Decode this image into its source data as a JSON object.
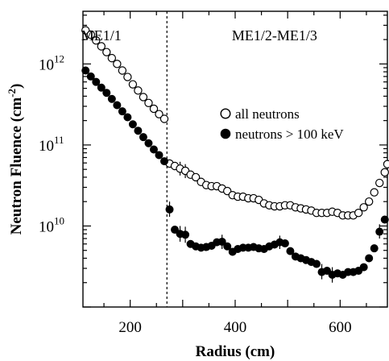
{
  "chart_data": {
    "type": "scatter",
    "xlabel": "Radius (cm)",
    "ylabel_main": "Neutron Fluence (cm",
    "ylabel_sup": "-2",
    "ylabel_close": ")",
    "xlim": [
      110,
      690
    ],
    "ylim_log10": [
      9.0,
      12.65
    ],
    "y_scale": "log",
    "x_ticks": [
      {
        "value": 200,
        "label": "200"
      },
      {
        "value": 400,
        "label": "400"
      },
      {
        "value": 600,
        "label": "600"
      }
    ],
    "y_ticks": [
      {
        "exp": 10,
        "base": "10",
        "sup": "10"
      },
      {
        "exp": 11,
        "base": "10",
        "sup": "11"
      },
      {
        "exp": 12,
        "base": "10",
        "sup": "12"
      }
    ],
    "divider_x": 270,
    "regions": [
      {
        "label": "ME1/1",
        "x": 145
      },
      {
        "label": "ME1/2-ME1/3",
        "x": 475
      }
    ],
    "legend": {
      "placement": "right-middle",
      "entries": [
        {
          "label": "all neutrons",
          "marker": "open-circle"
        },
        {
          "label": "neutrons > 100 keV",
          "marker": "filled-circle"
        }
      ]
    },
    "series": [
      {
        "name": "all neutrons",
        "marker": "open-circle",
        "points": [
          [
            115,
            2600000000000.0
          ],
          [
            125,
            2300000000000.0
          ],
          [
            135,
            1950000000000.0
          ],
          [
            145,
            1650000000000.0
          ],
          [
            155,
            1400000000000.0
          ],
          [
            165,
            1180000000000.0
          ],
          [
            175,
            1000000000000.0
          ],
          [
            185,
            830000000000.0
          ],
          [
            195,
            690000000000.0
          ],
          [
            205,
            560000000000.0
          ],
          [
            215,
            470000000000.0
          ],
          [
            225,
            390000000000.0
          ],
          [
            235,
            330000000000.0
          ],
          [
            245,
            280000000000.0
          ],
          [
            255,
            240000000000.0
          ],
          [
            265,
            210000000000.0
          ],
          [
            275,
            59000000000.0
          ],
          [
            285,
            55000000000.0
          ],
          [
            295,
            51000000000.0
          ],
          [
            305,
            48000000000.0
          ],
          [
            315,
            43000000000.0
          ],
          [
            325,
            40000000000.0
          ],
          [
            335,
            35000000000.0
          ],
          [
            345,
            32000000000.0
          ],
          [
            355,
            31000000000.0
          ],
          [
            365,
            31000000000.0
          ],
          [
            375,
            29000000000.0
          ],
          [
            385,
            27000000000.0
          ],
          [
            395,
            24000000000.0
          ],
          [
            405,
            23000000000.0
          ],
          [
            415,
            23000000000.0
          ],
          [
            425,
            22000000000.0
          ],
          [
            435,
            22000000000.0
          ],
          [
            445,
            21000000000.0
          ],
          [
            455,
            19000000000.0
          ],
          [
            465,
            18000000000.0
          ],
          [
            475,
            17500000000.0
          ],
          [
            485,
            17500000000.0
          ],
          [
            495,
            18000000000.0
          ],
          [
            505,
            18000000000.0
          ],
          [
            515,
            17000000000.0
          ],
          [
            525,
            16500000000.0
          ],
          [
            535,
            16000000000.0
          ],
          [
            545,
            15500000000.0
          ],
          [
            555,
            14500000000.0
          ],
          [
            565,
            14500000000.0
          ],
          [
            575,
            14500000000.0
          ],
          [
            585,
            15000000000.0
          ],
          [
            595,
            14500000000.0
          ],
          [
            605,
            13500000000.0
          ],
          [
            615,
            13500000000.0
          ],
          [
            625,
            13500000000.0
          ],
          [
            635,
            14500000000.0
          ],
          [
            645,
            17000000000.0
          ],
          [
            655,
            20000000000.0
          ],
          [
            665,
            26000000000.0
          ],
          [
            675,
            34000000000.0
          ],
          [
            685,
            46000000000.0
          ],
          [
            690,
            58000000000.0
          ]
        ],
        "error_bars": [
          {
            "x": 295,
            "low": 42000000000.0,
            "high": 62000000000.0
          },
          {
            "x": 305,
            "low": 39000000000.0,
            "high": 58000000000.0
          }
        ]
      },
      {
        "name": "neutrons > 100 keV",
        "marker": "filled-circle",
        "points": [
          [
            115,
            830000000000.0
          ],
          [
            125,
            700000000000.0
          ],
          [
            135,
            600000000000.0
          ],
          [
            145,
            510000000000.0
          ],
          [
            155,
            440000000000.0
          ],
          [
            165,
            370000000000.0
          ],
          [
            175,
            310000000000.0
          ],
          [
            185,
            260000000000.0
          ],
          [
            195,
            220000000000.0
          ],
          [
            205,
            180000000000.0
          ],
          [
            215,
            150000000000.0
          ],
          [
            225,
            125000000000.0
          ],
          [
            235,
            105000000000.0
          ],
          [
            245,
            88000000000.0
          ],
          [
            255,
            75000000000.0
          ],
          [
            265,
            63000000000.0
          ],
          [
            275,
            16000000000.0
          ],
          [
            285,
            9000000000.0
          ],
          [
            295,
            8000000000.0
          ],
          [
            305,
            7800000000.0
          ],
          [
            315,
            6000000000.0
          ],
          [
            325,
            5600000000.0
          ],
          [
            335,
            5400000000.0
          ],
          [
            345,
            5500000000.0
          ],
          [
            355,
            5700000000.0
          ],
          [
            365,
            6300000000.0
          ],
          [
            375,
            6400000000.0
          ],
          [
            385,
            5600000000.0
          ],
          [
            395,
            4800000000.0
          ],
          [
            405,
            5200000000.0
          ],
          [
            415,
            5400000000.0
          ],
          [
            425,
            5400000000.0
          ],
          [
            435,
            5500000000.0
          ],
          [
            445,
            5300000000.0
          ],
          [
            455,
            5200000000.0
          ],
          [
            465,
            5600000000.0
          ],
          [
            475,
            5900000000.0
          ],
          [
            485,
            6300000000.0
          ],
          [
            495,
            6100000000.0
          ],
          [
            505,
            4900000000.0
          ],
          [
            515,
            4200000000.0
          ],
          [
            525,
            4000000000.0
          ],
          [
            535,
            3800000000.0
          ],
          [
            545,
            3600000000.0
          ],
          [
            555,
            3400000000.0
          ],
          [
            565,
            2700000000.0
          ],
          [
            575,
            2800000000.0
          ],
          [
            585,
            2500000000.0
          ],
          [
            595,
            2600000000.0
          ],
          [
            605,
            2500000000.0
          ],
          [
            615,
            2700000000.0
          ],
          [
            625,
            2700000000.0
          ],
          [
            635,
            2800000000.0
          ],
          [
            645,
            3100000000.0
          ],
          [
            655,
            4000000000.0
          ],
          [
            665,
            5300000000.0
          ],
          [
            675,
            8500000000.0
          ],
          [
            685,
            12000000000.0
          ]
        ],
        "error_bars": [
          {
            "x": 275,
            "low": 13000000000.0,
            "high": 20000000000.0
          },
          {
            "x": 295,
            "low": 6400000000.0,
            "high": 10000000000.0
          },
          {
            "x": 305,
            "low": 6200000000.0,
            "high": 9800000000.0
          },
          {
            "x": 375,
            "low": 5200000000.0,
            "high": 7800000000.0
          },
          {
            "x": 485,
            "low": 5200000000.0,
            "high": 7600000000.0
          },
          {
            "x": 565,
            "low": 2200000000.0,
            "high": 3400000000.0
          },
          {
            "x": 585,
            "low": 2000000000.0,
            "high": 3100000000.0
          },
          {
            "x": 675,
            "low": 7000000000.0,
            "high": 10500000000.0
          }
        ]
      }
    ]
  }
}
